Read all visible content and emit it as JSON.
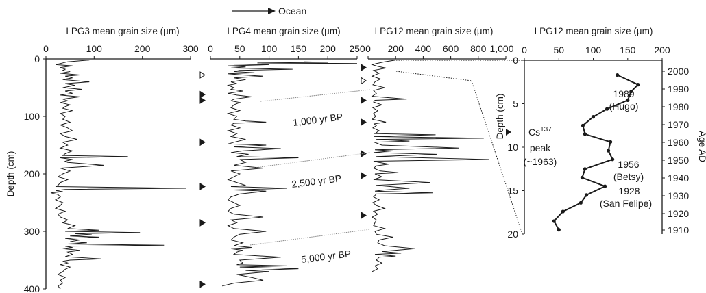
{
  "chart_data": [
    {
      "type": "line",
      "title": "LPG3 mean grain size (µm)",
      "xlabel": "LPG3 mean grain size (µm)",
      "ylabel": "Depth (cm)",
      "xlim": [
        0,
        300
      ],
      "ylim": [
        0,
        400
      ],
      "xticks": [
        "0",
        "100",
        "200",
        "300"
      ],
      "yticks": [
        "0",
        "100",
        "200",
        "300",
        "400"
      ],
      "series": [
        {
          "depth_cm": [
            2,
            5,
            8,
            10,
            12,
            15,
            18,
            20,
            22,
            25,
            28,
            30,
            33,
            36,
            40,
            43,
            46,
            50,
            53,
            56,
            60,
            63,
            66,
            70,
            73,
            76,
            80,
            83,
            86,
            90,
            95,
            100,
            105,
            110,
            115,
            120,
            125,
            130,
            135,
            140,
            145,
            150,
            155,
            160,
            165,
            168,
            170,
            172,
            175,
            178,
            180,
            185,
            190,
            195,
            200,
            205,
            210,
            215,
            220,
            222,
            225,
            227,
            229,
            231,
            233,
            236,
            240,
            245,
            250,
            255,
            260,
            265,
            270,
            275,
            280,
            285,
            290,
            295,
            298,
            300,
            302,
            304,
            306,
            308,
            310,
            312,
            315,
            318,
            320,
            322,
            324,
            326,
            328,
            330,
            333,
            336,
            340,
            344,
            348,
            350,
            352,
            355,
            358,
            362,
            366,
            370,
            375,
            380,
            385,
            390,
            395,
            400
          ],
          "mean_grain_size_um": [
            90,
            45,
            30,
            20,
            55,
            30,
            40,
            35,
            50,
            30,
            70,
            40,
            55,
            35,
            90,
            40,
            60,
            35,
            75,
            40,
            55,
            30,
            70,
            35,
            45,
            30,
            50,
            40,
            35,
            55,
            30,
            40,
            35,
            50,
            30,
            45,
            55,
            30,
            40,
            65,
            35,
            45,
            30,
            55,
            40,
            35,
            170,
            30,
            55,
            40,
            45,
            120,
            30,
            50,
            35,
            25,
            45,
            30,
            25,
            20,
            290,
            40,
            20,
            35,
            10,
            25,
            30,
            20,
            35,
            30,
            20,
            40,
            25,
            30,
            45,
            35,
            60,
            45,
            110,
            40,
            195,
            60,
            95,
            50,
            110,
            40,
            70,
            50,
            85,
            45,
            245,
            40,
            55,
            35,
            70,
            45,
            55,
            40,
            115,
            50,
            35,
            45,
            30,
            50,
            40,
            35,
            25,
            40,
            30,
            35,
            25,
            30
          ]
        }
      ]
    },
    {
      "type": "line",
      "title": "LPG4 mean grain size (µm)",
      "xlabel": "LPG4 mean grain size (µm)",
      "xlim": [
        0,
        250
      ],
      "ylim": [
        0,
        400
      ],
      "xticks": [
        "0",
        "50",
        "100",
        "150",
        "200",
        "250"
      ],
      "series": [
        {
          "depth_cm": [
            5,
            6,
            7,
            8,
            9,
            10,
            12,
            14,
            16,
            18,
            20,
            22,
            24,
            26,
            28,
            30,
            33,
            36,
            40,
            43,
            46,
            50,
            53,
            56,
            60,
            63,
            66,
            70,
            73,
            76,
            80,
            85,
            90,
            95,
            100,
            105,
            108,
            110,
            112,
            115,
            120,
            125,
            130,
            135,
            140,
            145,
            148,
            150,
            153,
            156,
            160,
            163,
            166,
            170,
            172,
            175,
            180,
            185,
            190,
            195,
            200,
            205,
            210,
            215,
            220,
            222,
            225,
            228,
            230,
            235,
            240,
            245,
            250,
            255,
            260,
            265,
            270,
            275,
            280,
            285,
            290,
            295,
            300,
            305,
            310,
            315,
            320,
            325,
            328,
            330,
            333,
            336,
            340,
            345,
            350,
            355,
            358,
            360,
            362,
            365,
            368,
            370,
            375,
            380,
            385,
            390,
            395
          ],
          "mean_grain_size_um": [
            160,
            200,
            80,
            250,
            40,
            100,
            30,
            60,
            35,
            140,
            50,
            40,
            75,
            30,
            55,
            90,
            40,
            60,
            35,
            45,
            30,
            40,
            35,
            55,
            30,
            45,
            70,
            40,
            35,
            50,
            40,
            35,
            50,
            30,
            45,
            40,
            60,
            95,
            40,
            35,
            50,
            30,
            45,
            35,
            60,
            40,
            30,
            95,
            40,
            120,
            55,
            35,
            65,
            45,
            150,
            50,
            60,
            40,
            90,
            35,
            50,
            40,
            30,
            45,
            60,
            35,
            130,
            40,
            95,
            50,
            35,
            30,
            40,
            50,
            35,
            30,
            40,
            90,
            35,
            45,
            30,
            40,
            95,
            50,
            40,
            35,
            55,
            40,
            70,
            35,
            55,
            45,
            40,
            120,
            50,
            55,
            45,
            130,
            50,
            150,
            60,
            100,
            45,
            70,
            90,
            40,
            20
          ]
        }
      ]
    },
    {
      "type": "line",
      "title": "LPG12 mean grain size (µm)",
      "xlabel": "LPG12 mean grain size (µm)",
      "xlim": [
        0,
        1000
      ],
      "ylim": [
        0,
        400
      ],
      "xticks": [
        "0",
        "200",
        "400",
        "600",
        "800",
        "1,000"
      ],
      "series": [
        {
          "depth_cm": [
            2,
            5,
            8,
            10,
            13,
            16,
            20,
            25,
            30,
            35,
            40,
            45,
            50,
            55,
            60,
            65,
            70,
            72,
            75,
            80,
            85,
            90,
            95,
            100,
            105,
            110,
            113,
            116,
            120,
            125,
            130,
            132,
            135,
            138,
            140,
            143,
            145,
            150,
            155,
            158,
            160,
            163,
            166,
            170,
            175,
            178,
            180,
            183,
            186,
            190,
            195,
            198,
            200,
            205,
            210,
            215,
            220,
            225,
            228,
            230,
            233,
            235,
            240,
            245,
            250,
            255,
            260,
            265,
            270,
            275,
            280,
            285,
            290,
            295,
            300,
            305,
            310,
            315,
            320,
            325,
            330,
            335,
            338,
            340,
            343,
            345,
            350,
            355,
            360,
            365,
            370
          ],
          "mean_grain_size_um": [
            200,
            120,
            60,
            30,
            70,
            130,
            40,
            80,
            30,
            90,
            50,
            35,
            120,
            40,
            60,
            30,
            280,
            50,
            40,
            100,
            35,
            70,
            40,
            55,
            30,
            130,
            45,
            60,
            35,
            80,
            50,
            490,
            40,
            840,
            60,
            300,
            45,
            100,
            660,
            50,
            180,
            40,
            500,
            60,
            880,
            40,
            80,
            150,
            60,
            40,
            90,
            220,
            50,
            100,
            40,
            450,
            60,
            300,
            120,
            50,
            470,
            60,
            40,
            80,
            35,
            60,
            120,
            40,
            70,
            30,
            60,
            50,
            40,
            120,
            50,
            60,
            180,
            80,
            70,
            120,
            340,
            100,
            240,
            50,
            200,
            80,
            60,
            100,
            50,
            70,
            30
          ]
        }
      ]
    },
    {
      "type": "line",
      "title": "LPG12 mean grain size (µm)",
      "xlabel": "LPG12 mean grain size (µm)",
      "ylabel": "Depth (cm)",
      "y2label": "Age AD",
      "xlim": [
        0,
        200
      ],
      "ylim": [
        0,
        20
      ],
      "xticks": [
        "0",
        "50",
        "100",
        "150",
        "200"
      ],
      "yticks": [
        "0",
        "5",
        "10",
        "15",
        "20"
      ],
      "y2ticks": [
        "2000",
        "1990",
        "1980",
        "1970",
        "1960",
        "1950",
        "1940",
        "1930",
        "1920",
        "1910"
      ],
      "series": [
        {
          "depth_cm": [
            1.7,
            2.8,
            3.6,
            4.6,
            5.6,
            6.5,
            7.5,
            8.5,
            9.4,
            10.4,
            11.4,
            12.5,
            13.5,
            14.5,
            15.5,
            16.4,
            17.4,
            18.5,
            19.5
          ],
          "mean_grain_size_um": [
            135,
            165,
            155,
            150,
            120,
            100,
            85,
            88,
            125,
            122,
            128,
            88,
            84,
            117,
            90,
            82,
            56,
            43,
            50
          ]
        }
      ],
      "annotations": [
        {
          "depth_cm": 3.6,
          "label": "1989",
          "sublabel": "(Hugo)"
        },
        {
          "depth_cm": 10.4,
          "label": "1956",
          "sublabel": "(Betsy)"
        },
        {
          "depth_cm": 15.4,
          "label": "1928",
          "sublabel": "(San Felipe)"
        }
      ]
    }
  ],
  "labels": {
    "ocean": "Ocean",
    "yr_1000": "1,000 yr BP",
    "yr_2500": "2,500 yr BP",
    "yr_5000": "5,000 yr BP",
    "cs_main": "Cs",
    "cs_sup": "137",
    "cs_peak": "peak",
    "cs_date": "(~1963)"
  },
  "markers": {
    "lpg4_filled_cm": [
      62,
      72,
      145,
      222,
      285,
      392
    ],
    "lpg4_open_cm": [
      28
    ],
    "lpg12_filled_cm": [
      15,
      72,
      110,
      165,
      203,
      272
    ],
    "lpg12_open_cm": [
      38
    ],
    "cs_peak_depth_cm": 8.2
  }
}
